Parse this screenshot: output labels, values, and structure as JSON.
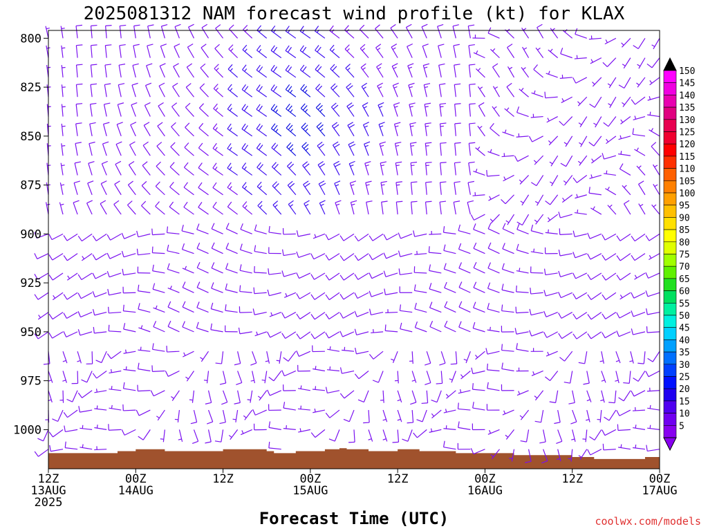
{
  "chart_data": {
    "type": "wind-barb time-height section",
    "title": "2025081312 NAM forecast wind profile (kt) for KLAX",
    "xlabel": "Forecast Time (UTC)",
    "credit": "coolwx.com/models",
    "y_axis": {
      "ticks": [
        "800",
        "825",
        "850",
        "875",
        "900",
        "925",
        "950",
        "975",
        "1000"
      ],
      "range_hpa": [
        796,
        1020
      ]
    },
    "x_axis": {
      "ticks": [
        {
          "hour": 0,
          "lines": [
            "12Z",
            "13AUG",
            "2025"
          ]
        },
        {
          "hour": 12,
          "lines": [
            "00Z",
            "14AUG"
          ]
        },
        {
          "hour": 24,
          "lines": [
            "12Z"
          ]
        },
        {
          "hour": 36,
          "lines": [
            "00Z",
            "15AUG"
          ]
        },
        {
          "hour": 48,
          "lines": [
            "12Z"
          ]
        },
        {
          "hour": 60,
          "lines": [
            "00Z",
            "16AUG"
          ]
        },
        {
          "hour": 72,
          "lines": [
            "12Z"
          ]
        },
        {
          "hour": 84,
          "lines": [
            "00Z",
            "17AUG"
          ]
        }
      ],
      "range_hours": [
        0,
        84
      ]
    },
    "colorbar": {
      "levels": [
        "150",
        "145",
        "140",
        "135",
        "130",
        "125",
        "120",
        "115",
        "110",
        "105",
        "100",
        "95",
        "90",
        "85",
        "80",
        "75",
        "70",
        "65",
        "60",
        "55",
        "50",
        "45",
        "40",
        "35",
        "30",
        "25",
        "20",
        "15",
        "10",
        "5"
      ],
      "colors": [
        "#ff00ff",
        "#f000e0",
        "#e800b0",
        "#e00080",
        "#e80050",
        "#f00030",
        "#ff0000",
        "#ff3000",
        "#ff6000",
        "#ff8000",
        "#ffa000",
        "#ffc000",
        "#ffe000",
        "#ffff00",
        "#e0ff00",
        "#a0ff00",
        "#60f000",
        "#20e020",
        "#00e060",
        "#00f0a0",
        "#00f0e0",
        "#00d0ff",
        "#00a0ff",
        "#0070ff",
        "#0040ff",
        "#0010ff",
        "#2000f0",
        "#5000f0",
        "#7000f0",
        "#8800f0"
      ]
    },
    "surface": {
      "color": "#a0522d",
      "pressure_hpa": [
        [
          0,
          1012
        ],
        [
          4,
          1012
        ],
        [
          8,
          1012
        ],
        [
          9.5,
          1011
        ],
        [
          12,
          1010
        ],
        [
          15,
          1010
        ],
        [
          16,
          1011
        ],
        [
          21,
          1011
        ],
        [
          24,
          1010
        ],
        [
          28,
          1010
        ],
        [
          30,
          1011
        ],
        [
          31,
          1012
        ],
        [
          34,
          1011
        ],
        [
          38,
          1010
        ],
        [
          40,
          1009.5
        ],
        [
          41,
          1010
        ],
        [
          43,
          1010
        ],
        [
          44,
          1011
        ],
        [
          48,
          1010
        ],
        [
          51,
          1011
        ],
        [
          56,
          1012
        ],
        [
          63,
          1012
        ],
        [
          64,
          1013
        ],
        [
          70,
          1013
        ],
        [
          72,
          1014
        ],
        [
          75,
          1015
        ],
        [
          79,
          1015
        ],
        [
          80,
          1015
        ],
        [
          82,
          1014
        ],
        [
          84,
          1014
        ]
      ]
    },
    "barb_levels_hpa": [
      800,
      810,
      820,
      830,
      840,
      850,
      860,
      870,
      880,
      890,
      900,
      910,
      920,
      930,
      940,
      950,
      960,
      970,
      980,
      990,
      1000,
      1010
    ],
    "barb_times_hours": [
      0,
      2,
      4,
      6,
      8,
      10,
      12,
      14,
      16,
      18,
      20,
      22,
      24,
      26,
      28,
      30,
      32,
      34,
      36,
      38,
      40,
      42,
      44,
      46,
      48,
      50,
      52,
      54,
      56,
      58,
      60,
      62,
      64,
      66,
      68,
      70,
      72,
      74,
      76,
      78,
      80,
      82,
      84
    ]
  }
}
